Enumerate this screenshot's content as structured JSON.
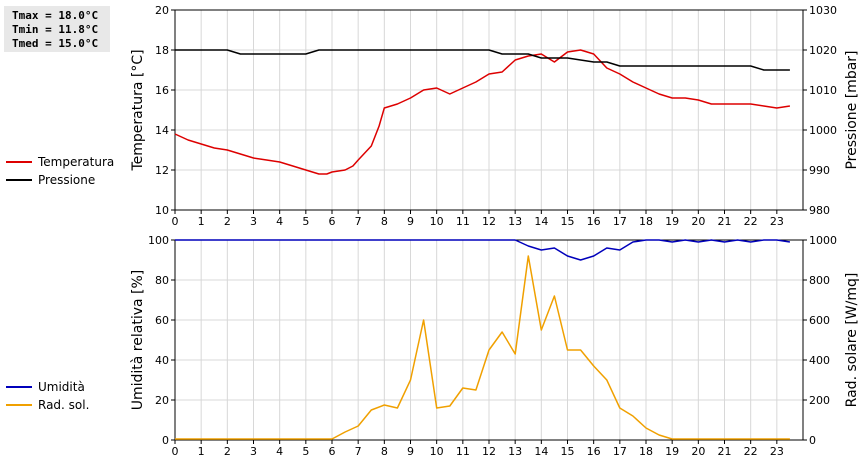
{
  "stats": {
    "tmax": "Tmax = 18.0°C",
    "tmin": "Tmin = 11.8°C",
    "tmed": "Tmed = 15.0°C"
  },
  "chart_data": [
    {
      "type": "line",
      "ylabel": "Temperatura [°C]",
      "y2label": "Pressione [mbar]",
      "xlim": [
        0,
        24
      ],
      "ylim": [
        10,
        20
      ],
      "y2lim": [
        980,
        1030
      ],
      "xticks": [
        "0",
        "1",
        "2",
        "3",
        "4",
        "5",
        "6",
        "7",
        "8",
        "9",
        "10",
        "11",
        "12",
        "13",
        "14",
        "15",
        "16",
        "17",
        "18",
        "19",
        "20",
        "21",
        "22",
        "23"
      ],
      "yticks": [
        "10",
        "12",
        "14",
        "16",
        "18",
        "20"
      ],
      "y2ticks": [
        "980",
        "990",
        "1000",
        "1010",
        "1020",
        "1030"
      ],
      "grid": true,
      "legend_position": "left",
      "series": [
        {
          "name": "Temperatura",
          "axis": "left",
          "color": "#dd0000",
          "x": [
            0,
            0.5,
            1,
            1.5,
            2,
            2.5,
            3,
            3.5,
            4,
            4.5,
            5,
            5.5,
            5.8,
            6,
            6.5,
            6.8,
            7,
            7.5,
            7.8,
            8,
            8.5,
            9,
            9.5,
            10,
            10.5,
            11,
            11.5,
            12,
            12.5,
            13,
            13.5,
            14,
            14.5,
            15,
            15.5,
            16,
            16.5,
            17,
            17.5,
            18,
            18.5,
            19,
            19.5,
            20,
            20.5,
            21,
            21.5,
            22,
            22.5,
            23,
            23.5
          ],
          "values": [
            13.8,
            13.5,
            13.3,
            13.1,
            13.0,
            12.8,
            12.6,
            12.5,
            12.4,
            12.2,
            12.0,
            11.8,
            11.8,
            11.9,
            12.0,
            12.2,
            12.5,
            13.2,
            14.2,
            15.1,
            15.3,
            15.6,
            16.0,
            16.1,
            15.8,
            16.1,
            16.4,
            16.8,
            16.9,
            17.5,
            17.7,
            17.8,
            17.4,
            17.9,
            18.0,
            17.8,
            17.1,
            16.8,
            16.4,
            16.1,
            15.8,
            15.6,
            15.6,
            15.5,
            15.3,
            15.3,
            15.3,
            15.3,
            15.2,
            15.1,
            15.2
          ]
        },
        {
          "name": "Pressione",
          "axis": "right",
          "color": "#000000",
          "x": [
            0,
            2,
            2.5,
            3,
            5,
            5.5,
            6,
            12,
            12.5,
            13,
            13.5,
            14,
            15,
            16,
            16.5,
            17,
            21,
            22,
            22.5,
            23.5
          ],
          "values": [
            1020,
            1020,
            1019,
            1019,
            1019,
            1020,
            1020,
            1020,
            1019,
            1019,
            1019,
            1018,
            1018,
            1017,
            1017,
            1016,
            1016,
            1016,
            1015,
            1015
          ]
        }
      ]
    },
    {
      "type": "line",
      "ylabel": "Umidità relativa [%]",
      "y2label": "Rad. solare [W/mq]",
      "xlim": [
        0,
        24
      ],
      "ylim": [
        0,
        100
      ],
      "y2lim": [
        0,
        1000
      ],
      "xticks": [
        "0",
        "1",
        "2",
        "3",
        "4",
        "5",
        "6",
        "7",
        "8",
        "9",
        "10",
        "11",
        "12",
        "13",
        "14",
        "15",
        "16",
        "17",
        "18",
        "19",
        "20",
        "21",
        "22",
        "23"
      ],
      "yticks": [
        "0",
        "20",
        "40",
        "60",
        "80",
        "100"
      ],
      "y2ticks": [
        "0",
        "200",
        "400",
        "600",
        "800",
        "1000"
      ],
      "grid": true,
      "legend_position": "left",
      "series": [
        {
          "name": "Umidità",
          "axis": "left",
          "color": "#0000bb",
          "x": [
            0,
            13,
            13.5,
            14,
            14.5,
            15,
            15.5,
            16,
            16.5,
            17,
            17.5,
            18,
            18.5,
            19,
            19.5,
            20,
            20.5,
            21,
            21.5,
            22,
            22.5,
            23,
            23.5
          ],
          "values": [
            100,
            100,
            97,
            95,
            96,
            92,
            90,
            92,
            96,
            95,
            99,
            100,
            100,
            99,
            100,
            99,
            100,
            99,
            100,
            99,
            100,
            100,
            99
          ]
        },
        {
          "name": "Rad. sol.",
          "axis": "right",
          "color": "#f0a000",
          "x": [
            0,
            0.5,
            1,
            1.5,
            2,
            2.5,
            3,
            3.5,
            4,
            4.5,
            5,
            5.5,
            6,
            6.5,
            7,
            7.5,
            8,
            8.5,
            9,
            9.5,
            10,
            10.5,
            11,
            11.5,
            12,
            12.5,
            13,
            13.5,
            14,
            14.5,
            15,
            15.5,
            16,
            16.5,
            17,
            17.5,
            18,
            18.5,
            19,
            19.5,
            20,
            20.5,
            21,
            21.5,
            22,
            22.5,
            23,
            23.5
          ],
          "values": [
            5,
            5,
            5,
            5,
            5,
            5,
            5,
            5,
            5,
            5,
            5,
            5,
            5,
            40,
            70,
            150,
            175,
            160,
            300,
            600,
            160,
            170,
            260,
            250,
            450,
            540,
            430,
            920,
            550,
            720,
            450,
            450,
            370,
            300,
            160,
            120,
            60,
            25,
            5,
            5,
            5,
            5,
            5,
            5,
            5,
            5,
            5,
            5
          ]
        }
      ]
    }
  ]
}
